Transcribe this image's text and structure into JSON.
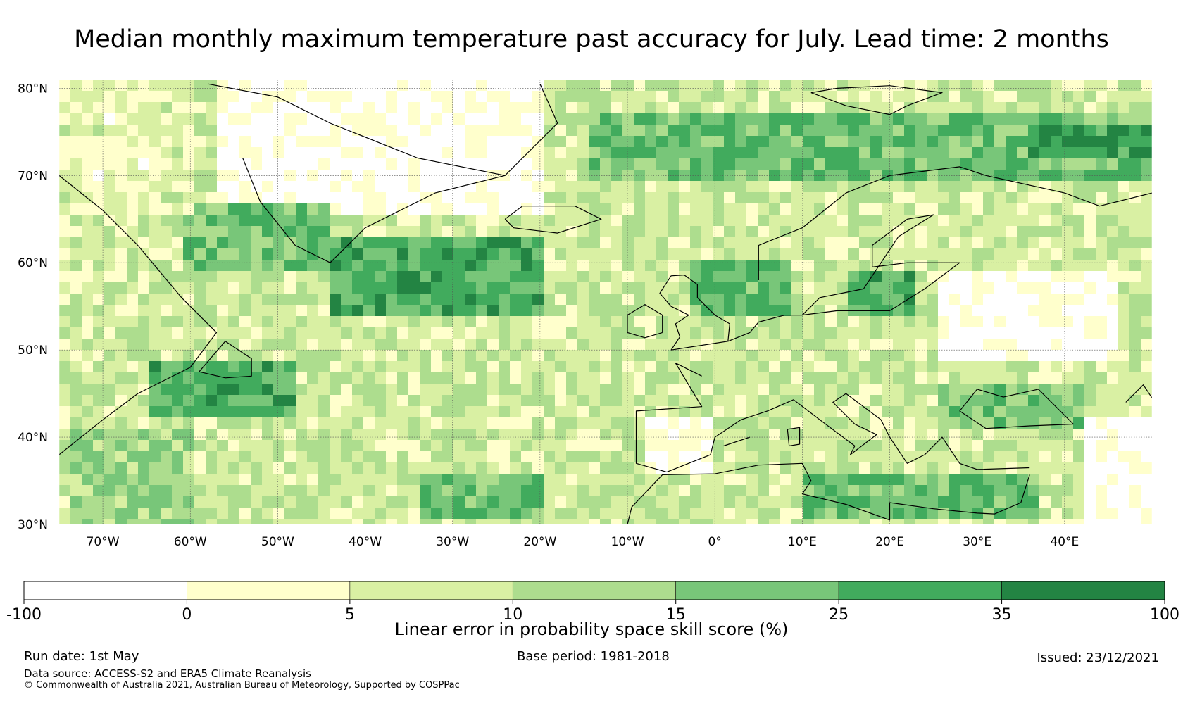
{
  "title": "Median monthly maximum temperature past accuracy for July. Lead time: 2 months",
  "map": {
    "lon_range": [
      -75,
      50
    ],
    "lat_range": [
      30,
      81
    ],
    "lat_ticks": [
      {
        "value": 80,
        "label": "80°N"
      },
      {
        "value": 70,
        "label": "70°N"
      },
      {
        "value": 60,
        "label": "60°N"
      },
      {
        "value": 50,
        "label": "50°N"
      },
      {
        "value": 40,
        "label": "40°N"
      },
      {
        "value": 30,
        "label": "30°N"
      }
    ],
    "lon_ticks": [
      {
        "value": -70,
        "label": "70°W"
      },
      {
        "value": -60,
        "label": "60°W"
      },
      {
        "value": -50,
        "label": "50°W"
      },
      {
        "value": -40,
        "label": "40°W"
      },
      {
        "value": -30,
        "label": "30°W"
      },
      {
        "value": -20,
        "label": "20°W"
      },
      {
        "value": -10,
        "label": "10°W"
      },
      {
        "value": 0,
        "label": "0°"
      },
      {
        "value": 10,
        "label": "10°E"
      },
      {
        "value": 20,
        "label": "20°E"
      },
      {
        "value": 30,
        "label": "30°E"
      },
      {
        "value": 40,
        "label": "40°E"
      }
    ]
  },
  "colorbar": {
    "title": "Linear error in probability space skill score (%)",
    "ticks": [
      "-100",
      "0",
      "5",
      "10",
      "15",
      "25",
      "35",
      "100"
    ],
    "colors": [
      "#ffffff",
      "#ffffcc",
      "#d9f0a3",
      "#addd8e",
      "#78c679",
      "#41ab5d",
      "#238443"
    ]
  },
  "footer": {
    "run_date": "Run date: 1st May",
    "base_period": "Base period: 1981-2018",
    "issued": "Issued: 23/12/2021",
    "data_source": "Data source: ACCESS-S2 and ERA5 Climate Reanalysis",
    "copyright": "© Commonwealth of Australia 2021, Australian Bureau of Meteorology, Supported by COSPPac"
  }
}
